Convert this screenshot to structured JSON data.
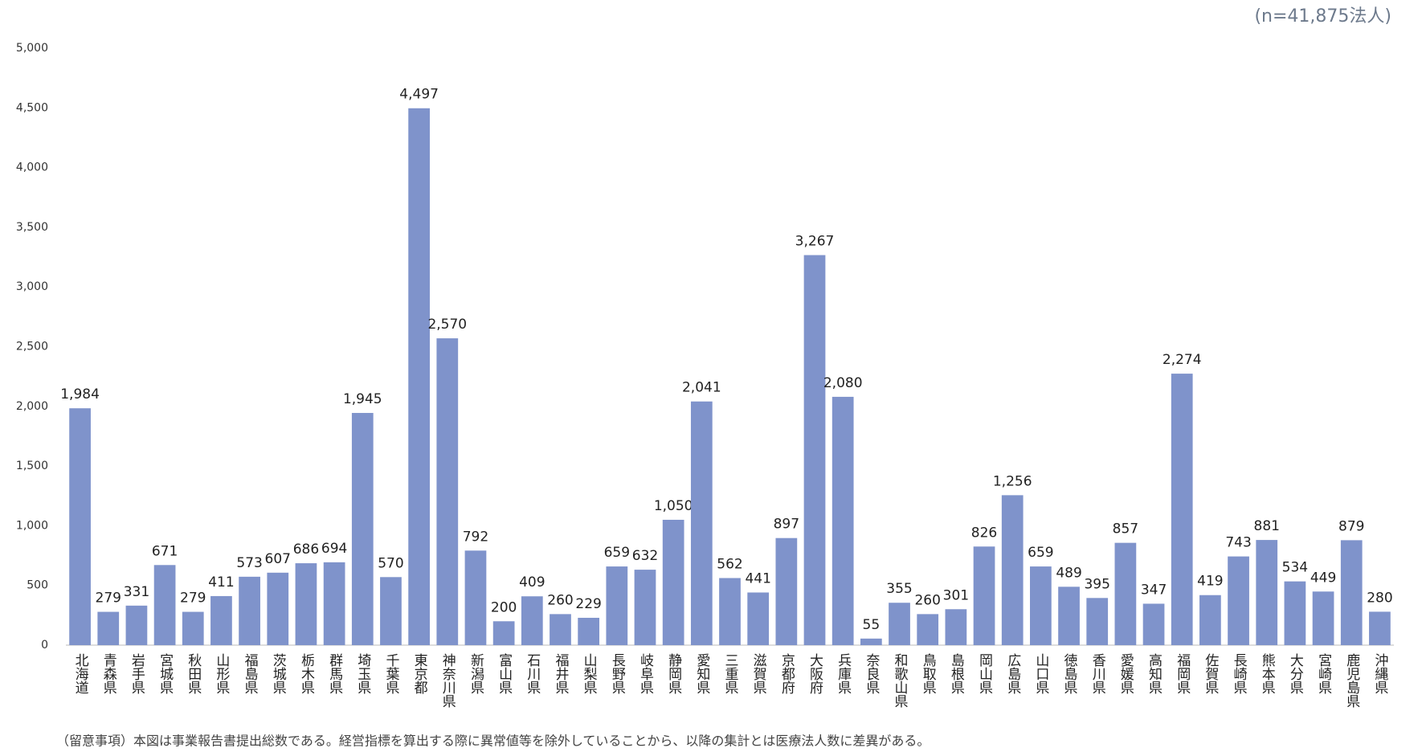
{
  "chart_data": {
    "type": "bar",
    "subtitle": "(n=41,875法人)",
    "note": "（留意事項）本図は事業報告書提出総数である。経営指標を算出する際に異常値等を除外していることから、以降の集計とは医療法人数に差異がある。",
    "categories": [
      "北海道",
      "青森県",
      "岩手県",
      "宮城県",
      "秋田県",
      "山形県",
      "福島県",
      "茨城県",
      "栃木県",
      "群馬県",
      "埼玉県",
      "千葉県",
      "東京都",
      "神奈川県",
      "新潟県",
      "富山県",
      "石川県",
      "福井県",
      "山梨県",
      "長野県",
      "岐阜県",
      "静岡県",
      "愛知県",
      "三重県",
      "滋賀県",
      "京都府",
      "大阪府",
      "兵庫県",
      "奈良県",
      "和歌山県",
      "鳥取県",
      "島根県",
      "岡山県",
      "広島県",
      "山口県",
      "徳島県",
      "香川県",
      "愛媛県",
      "高知県",
      "福岡県",
      "佐賀県",
      "長崎県",
      "熊本県",
      "大分県",
      "宮崎県",
      "鹿児島県",
      "沖縄県"
    ],
    "values": [
      1984,
      279,
      331,
      671,
      279,
      411,
      573,
      607,
      686,
      694,
      1945,
      570,
      4497,
      2570,
      792,
      200,
      409,
      260,
      229,
      659,
      632,
      1050,
      2041,
      562,
      441,
      897,
      3267,
      2080,
      55,
      355,
      260,
      301,
      826,
      1256,
      659,
      489,
      395,
      857,
      347,
      2274,
      419,
      743,
      881,
      534,
      449,
      879,
      280
    ],
    "value_labels": [
      "1,984",
      "279",
      "331",
      "671",
      "279",
      "411",
      "573",
      "607",
      "686",
      "694",
      "1,945",
      "570",
      "4,497",
      "2,570",
      "792",
      "200",
      "409",
      "260",
      "229",
      "659",
      "632",
      "1,050",
      "2,041",
      "562",
      "441",
      "897",
      "3,267",
      "2,080",
      "55",
      "355",
      "260",
      "301",
      "826",
      "1,256",
      "659",
      "489",
      "395",
      "857",
      "347",
      "2,274",
      "419",
      "743",
      "881",
      "534",
      "449",
      "879",
      "280"
    ],
    "color": "#7f93cb",
    "ylim": [
      0,
      5000
    ],
    "yticks": [
      0,
      500,
      {
        "value": 1000,
        "label": "1,000"
      },
      {
        "value": 1500,
        "label": "1,500"
      },
      {
        "value": 2000,
        "label": "2,000"
      },
      {
        "value": 2500,
        "label": "2,500"
      },
      {
        "value": 3000,
        "label": "3,000"
      },
      {
        "value": 3500,
        "label": "3,500"
      },
      {
        "value": 4000,
        "label": "4,000"
      },
      {
        "value": 4500,
        "label": "4,500"
      },
      {
        "value": 5000,
        "label": "5,000"
      }
    ],
    "grid": false
  }
}
